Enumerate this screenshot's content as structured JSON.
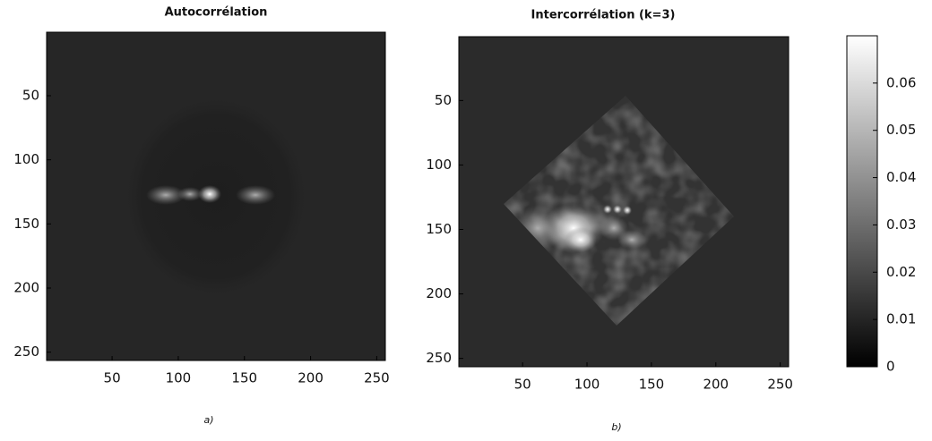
{
  "chart_data": [
    {
      "type": "image",
      "title": "Autocorrélation",
      "caption": "a)",
      "xlim": [
        0.5,
        256.5
      ],
      "xticks": [
        50,
        100,
        150,
        200,
        250
      ],
      "ylim": [
        0.5,
        256.5
      ],
      "yticks": [
        50,
        100,
        150,
        200,
        250
      ],
      "yreversed": true
    },
    {
      "type": "image",
      "title": "Intercorrélation (k=3)",
      "caption": "b)",
      "xlim": [
        0.5,
        256.5
      ],
      "xticks": [
        50,
        100,
        150,
        200,
        250
      ],
      "ylim": [
        0.5,
        256.5
      ],
      "yticks": [
        50,
        100,
        150,
        200,
        250
      ],
      "yreversed": true,
      "colorbar": {
        "clim": [
          0,
          0.07
        ],
        "ticks": [
          0,
          0.01,
          0.02,
          0.03,
          0.04,
          0.05,
          0.06
        ]
      }
    }
  ]
}
